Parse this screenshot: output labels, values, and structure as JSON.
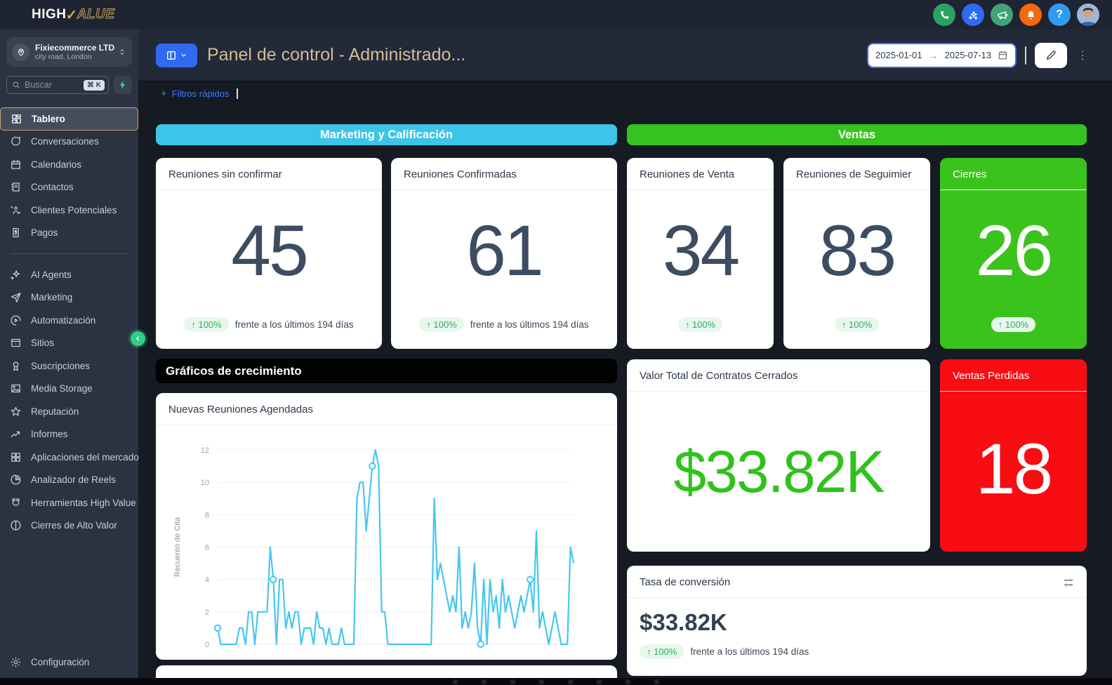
{
  "brand": {
    "part1": "HIGH",
    "check": "✓",
    "part2": "ALUE"
  },
  "colors": {
    "accent_blue": "#2f6bf0",
    "cyan_band": "#3cc5e8",
    "green_band": "#37c31f",
    "green_card": "#3bc31d",
    "red_card": "#f70d12",
    "money_green": "#2fc21c",
    "badge_green": "#2fae5d",
    "title_tan": "#d3bd92",
    "chart_line": "#45c7f0"
  },
  "topbar": {
    "icons": [
      {
        "name": "phone-icon",
        "bg": "#2aa262"
      },
      {
        "name": "ai-sparkles-icon",
        "bg": "#2f6bf0"
      },
      {
        "name": "megaphone-icon",
        "bg": "#41a377"
      },
      {
        "name": "bell-icon",
        "bg": "#f4680e"
      },
      {
        "name": "help-icon",
        "bg": "#2f9bf2"
      }
    ]
  },
  "sidebar": {
    "account": {
      "name": "Fixiecommerce LTD",
      "location": "city road, London"
    },
    "search": {
      "placeholder": "Buscar",
      "shortcut": "⌘ K"
    },
    "items": [
      {
        "label": "Tablero",
        "icon": "grid-dashboard-icon",
        "active": true
      },
      {
        "label": "Conversaciones",
        "icon": "chat-icon"
      },
      {
        "label": "Calendarios",
        "icon": "calendar-icon"
      },
      {
        "label": "Contactos",
        "icon": "contacts-icon"
      },
      {
        "label": "Clientes Potenciales",
        "icon": "leads-icon"
      },
      {
        "label": "Pagos",
        "icon": "payments-icon"
      },
      {
        "divider": true
      },
      {
        "label": "AI Agents",
        "icon": "ai-agents-icon"
      },
      {
        "label": "Marketing",
        "icon": "paper-plane-icon"
      },
      {
        "label": "Automatización",
        "icon": "automation-icon"
      },
      {
        "label": "Sitios",
        "icon": "sites-icon"
      },
      {
        "label": "Suscripciones",
        "icon": "subscriptions-icon"
      },
      {
        "label": "Media Storage",
        "icon": "media-icon"
      },
      {
        "label": "Reputación",
        "icon": "star-icon"
      },
      {
        "label": "Informes",
        "icon": "reports-icon"
      },
      {
        "label": "Aplicaciones del mercado",
        "icon": "apps-grid-icon"
      },
      {
        "label": "Analizador de Reels",
        "icon": "pie-icon"
      },
      {
        "label": "Herramientas High Value",
        "icon": "magnet-icon"
      },
      {
        "label": "Cierres de Alto Valor",
        "icon": "split-circle-icon"
      }
    ],
    "footer": {
      "label": "Configuración",
      "icon": "gear-icon"
    }
  },
  "header": {
    "title": "Panel de control - Administrado...",
    "date_start": "2025-01-01",
    "date_arrow": "→",
    "date_end": "2025-07-13",
    "dots": "⋮"
  },
  "filters": {
    "plus": "+",
    "label": "Filtros rápidos"
  },
  "sections": {
    "marketing": {
      "label": "Marketing y Calificación",
      "cards": [
        {
          "title": "Reuniones sin confirmar",
          "value": "45",
          "badge": "↑ 100%",
          "compare": "frente a los últimos 194 días",
          "variant": "white"
        },
        {
          "title": "Reuniones Confirmadas",
          "value": "61",
          "badge": "↑ 100%",
          "compare": "frente a los últimos 194 días",
          "variant": "white"
        }
      ]
    },
    "ventas": {
      "label": "Ventas",
      "cards": [
        {
          "title": "Reuniones de Venta",
          "value": "34",
          "badge": "↑ 100%",
          "variant": "white"
        },
        {
          "title": "Reuniones de Seguimier",
          "value": "83",
          "badge": "↑ 100%",
          "variant": "white"
        },
        {
          "title": "Cierres",
          "value": "26",
          "badge": "↑ 100%",
          "variant": "green"
        }
      ]
    }
  },
  "growth": {
    "header": "Gráficos de crecimiento"
  },
  "value_card": {
    "title": "Valor Total de Contratos Cerrados",
    "value": "$33.82K"
  },
  "lost_card": {
    "title": "Ventas Perdidas",
    "value": "18"
  },
  "conversion_card": {
    "title": "Tasa de conversión",
    "value": "$33.82K",
    "badge": "↑ 100%",
    "compare": "frente a los últimos 194 días"
  },
  "chart_data": {
    "type": "line",
    "title": "Nuevas Reuniones Agendadas",
    "ylabel": "Recuento de Cita",
    "ylim": [
      0,
      12
    ],
    "yticks": [
      0,
      2,
      4,
      6,
      8,
      10,
      12
    ],
    "grid": true,
    "line_color": "#45c7f0",
    "values": [
      1,
      0,
      0,
      0,
      0,
      0,
      0,
      1,
      1,
      0,
      2,
      2,
      0,
      2,
      2,
      2,
      2,
      6,
      4,
      0,
      4,
      4,
      1,
      2,
      1,
      2,
      2,
      0,
      1,
      1,
      1,
      0,
      2,
      1,
      1,
      0,
      1,
      0,
      0,
      0,
      1,
      0,
      0,
      0,
      0,
      9,
      10,
      10,
      7,
      9,
      11,
      12,
      11,
      2,
      2,
      0,
      0,
      0,
      0,
      0,
      0,
      0,
      0,
      0,
      0,
      0,
      0,
      0,
      0,
      0,
      9,
      4,
      5,
      4,
      3,
      2,
      3,
      2,
      6,
      1,
      2,
      1,
      2,
      5,
      1,
      0,
      4,
      0,
      4,
      2,
      3,
      1,
      4,
      2,
      3,
      2,
      1,
      2,
      3,
      2,
      3,
      4,
      2,
      7,
      1,
      2,
      1,
      0,
      1,
      2,
      1,
      0,
      0,
      0,
      6,
      5
    ],
    "marker_indices": [
      0,
      18,
      50,
      85,
      101
    ]
  }
}
